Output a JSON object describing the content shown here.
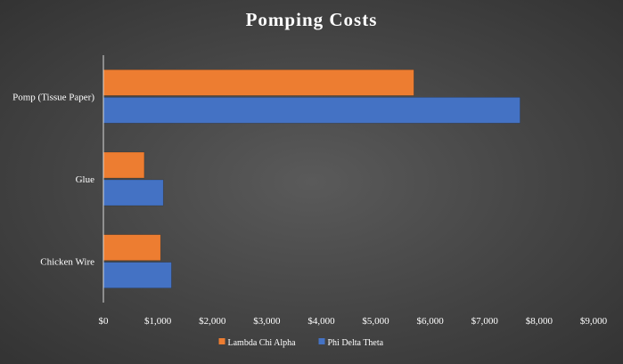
{
  "chart_data": {
    "type": "bar",
    "orientation": "horizontal",
    "title": "Pomping Costs",
    "categories": [
      "Pomp (Tissue Paper)",
      "Glue",
      "Chicken Wire"
    ],
    "series": [
      {
        "name": "Lambda Chi Alpha",
        "color": "#ed7d31",
        "values": [
          5700,
          750,
          1050
        ]
      },
      {
        "name": "Phi Delta Theta",
        "color": "#4472c4",
        "values": [
          7650,
          1100,
          1250
        ]
      }
    ],
    "xlim": [
      0,
      9000
    ],
    "x_ticks": [
      0,
      1000,
      2000,
      3000,
      4000,
      5000,
      6000,
      7000,
      8000,
      9000
    ],
    "tick_labels": [
      "$0",
      "$1,000",
      "$2,000",
      "$3,000",
      "$4,000",
      "$5,000",
      "$6,000",
      "$7,000",
      "$8,000",
      "$9,000"
    ],
    "grid": false,
    "legend_position": "bottom",
    "xlabel": "",
    "ylabel": ""
  }
}
